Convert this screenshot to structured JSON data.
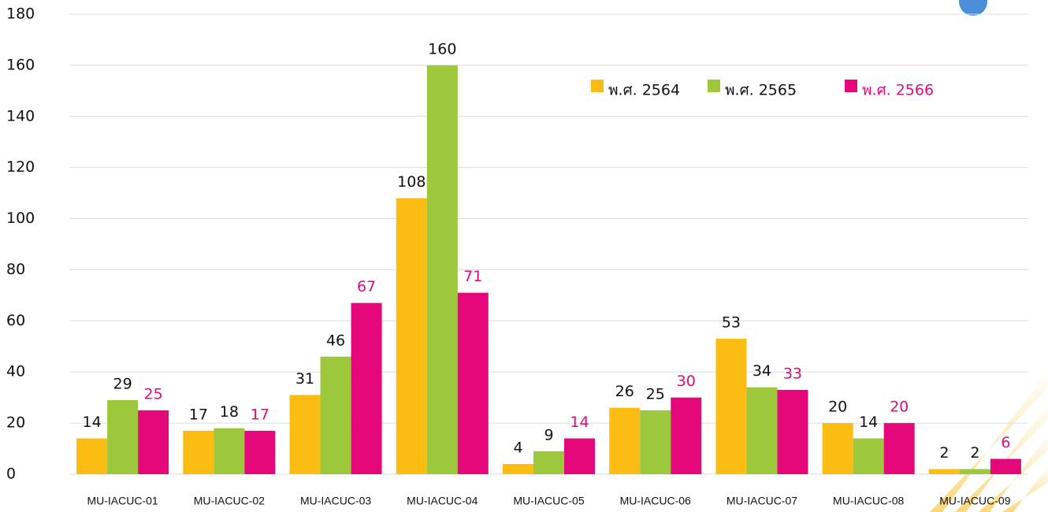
{
  "chart_data": {
    "type": "bar",
    "categories": [
      "MU-IACUC-01",
      "MU-IACUC-02",
      "MU-IACUC-03",
      "MU-IACUC-04",
      "MU-IACUC-05",
      "MU-IACUC-06",
      "MU-IACUC-07",
      "MU-IACUC-08",
      "MU-IACUC-09"
    ],
    "series": [
      {
        "name": "พ.ศ. 2564",
        "color": "#fbbd13",
        "label_color": "#111111",
        "values": [
          14,
          17,
          31,
          108,
          4,
          26,
          53,
          20,
          2
        ]
      },
      {
        "name": "พ.ศ. 2565",
        "color": "#9dc83b",
        "label_color": "#111111",
        "values": [
          29,
          18,
          46,
          160,
          9,
          25,
          34,
          14,
          2
        ]
      },
      {
        "name": "พ.ศ. 2566",
        "color": "#e5087a",
        "label_color": "#e5087a",
        "values": [
          25,
          17,
          67,
          71,
          14,
          30,
          33,
          20,
          6
        ]
      }
    ],
    "ylim": [
      0,
      180
    ],
    "yticks": [
      0,
      20,
      40,
      60,
      80,
      100,
      120,
      140,
      160,
      180
    ],
    "grid": true,
    "legend": "top-right"
  }
}
